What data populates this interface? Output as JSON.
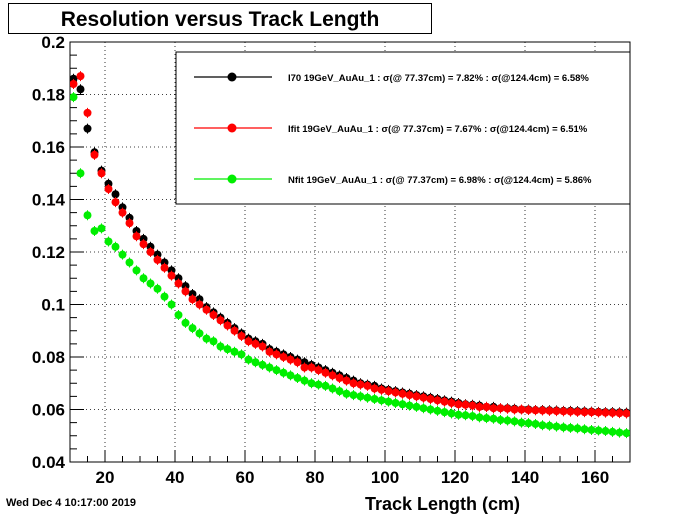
{
  "title": "Resolution versus Track Length",
  "timestamp": "Wed Dec  4 10:17:00 2019",
  "chart_data": {
    "type": "scatter",
    "title": "Resolution versus Track Length",
    "xlabel": "Track Length (cm)",
    "ylabel": "",
    "xlim": [
      10,
      170
    ],
    "ylim": [
      0.04,
      0.2
    ],
    "xticks": [
      20,
      40,
      60,
      80,
      100,
      120,
      140,
      160
    ],
    "yticks": [
      0.04,
      0.06,
      0.08,
      0.1,
      0.12,
      0.14,
      0.16,
      0.18,
      0.2
    ],
    "xtick_labels": [
      "20",
      "40",
      "60",
      "80",
      "100",
      "120",
      "140",
      "160"
    ],
    "ytick_labels": [
      "0.04",
      "0.06",
      "0.08",
      "0.1",
      "0.12",
      "0.14",
      "0.16",
      "0.18",
      "0.2"
    ],
    "grid": true,
    "legend_position": "top-right",
    "series": [
      {
        "name": "I70 19GeV_AuAu_1 : σ(@ 77.37cm) =  7.82% : σ(@124.4cm) =  6.58%",
        "color": "#000000",
        "marker": "circle",
        "x": [
          11,
          13,
          15,
          17,
          19,
          21,
          23,
          25,
          27,
          29,
          31,
          33,
          35,
          37,
          39,
          41,
          43,
          45,
          47,
          49,
          51,
          53,
          55,
          57,
          59,
          61,
          63,
          65,
          67,
          69,
          71,
          73,
          75,
          77,
          79,
          81,
          83,
          85,
          87,
          89,
          91,
          93,
          95,
          97,
          99,
          101,
          103,
          105,
          107,
          109,
          111,
          113,
          115,
          117,
          119,
          121,
          123,
          125,
          127,
          129,
          131,
          133,
          135,
          137,
          139,
          141,
          143,
          145,
          147,
          149,
          151,
          153,
          155,
          157,
          159,
          161,
          163,
          165,
          167,
          169
        ],
        "y": [
          0.186,
          0.182,
          0.167,
          0.158,
          0.151,
          0.146,
          0.142,
          0.137,
          0.133,
          0.128,
          0.125,
          0.122,
          0.119,
          0.116,
          0.113,
          0.11,
          0.107,
          0.104,
          0.102,
          0.099,
          0.097,
          0.095,
          0.093,
          0.091,
          0.089,
          0.087,
          0.086,
          0.085,
          0.083,
          0.082,
          0.081,
          0.08,
          0.079,
          0.078,
          0.077,
          0.076,
          0.075,
          0.074,
          0.073,
          0.072,
          0.071,
          0.07,
          0.0695,
          0.069,
          0.068,
          0.0675,
          0.067,
          0.0665,
          0.066,
          0.0655,
          0.065,
          0.0645,
          0.064,
          0.0635,
          0.063,
          0.0625,
          0.062,
          0.0618,
          0.0615,
          0.061,
          0.061,
          0.0605,
          0.0605,
          0.0603,
          0.06,
          0.06,
          0.0598,
          0.0598,
          0.0597,
          0.0596,
          0.0595,
          0.0595,
          0.0594,
          0.0593,
          0.0592,
          0.0591,
          0.059,
          0.059,
          0.0589,
          0.0588
        ]
      },
      {
        "name": "Ifit 19GeV_AuAu_1 : σ(@ 77.37cm) =  7.67% : σ(@124.4cm) =  6.51%",
        "color": "#ff0000",
        "marker": "circle",
        "x": [
          11,
          13,
          15,
          17,
          19,
          21,
          23,
          25,
          27,
          29,
          31,
          33,
          35,
          37,
          39,
          41,
          43,
          45,
          47,
          49,
          51,
          53,
          55,
          57,
          59,
          61,
          63,
          65,
          67,
          69,
          71,
          73,
          75,
          77,
          79,
          81,
          83,
          85,
          87,
          89,
          91,
          93,
          95,
          97,
          99,
          101,
          103,
          105,
          107,
          109,
          111,
          113,
          115,
          117,
          119,
          121,
          123,
          125,
          127,
          129,
          131,
          133,
          135,
          137,
          139,
          141,
          143,
          145,
          147,
          149,
          151,
          153,
          155,
          157,
          159,
          161,
          163,
          165,
          167,
          169
        ],
        "y": [
          0.184,
          0.187,
          0.173,
          0.157,
          0.15,
          0.144,
          0.139,
          0.135,
          0.131,
          0.126,
          0.123,
          0.12,
          0.117,
          0.114,
          0.111,
          0.108,
          0.105,
          0.102,
          0.1,
          0.098,
          0.096,
          0.094,
          0.092,
          0.09,
          0.088,
          0.086,
          0.085,
          0.084,
          0.082,
          0.081,
          0.08,
          0.079,
          0.078,
          0.076,
          0.076,
          0.075,
          0.074,
          0.073,
          0.072,
          0.071,
          0.07,
          0.0695,
          0.069,
          0.068,
          0.0675,
          0.067,
          0.0665,
          0.066,
          0.0655,
          0.065,
          0.0645,
          0.064,
          0.0635,
          0.063,
          0.0625,
          0.062,
          0.0618,
          0.0615,
          0.061,
          0.061,
          0.0605,
          0.0605,
          0.0603,
          0.06,
          0.06,
          0.0598,
          0.0597,
          0.0596,
          0.0595,
          0.0594,
          0.0593,
          0.0592,
          0.0591,
          0.059,
          0.059,
          0.0589,
          0.0588,
          0.0587,
          0.0586,
          0.0585
        ]
      },
      {
        "name": "Nfit 19GeV_AuAu_1 : σ(@ 77.37cm) =  6.98% : σ(@124.4cm) =  5.86%",
        "color": "#00ee00",
        "marker": "circle",
        "x": [
          11,
          13,
          15,
          17,
          19,
          21,
          23,
          25,
          27,
          29,
          31,
          33,
          35,
          37,
          39,
          41,
          43,
          45,
          47,
          49,
          51,
          53,
          55,
          57,
          59,
          61,
          63,
          65,
          67,
          69,
          71,
          73,
          75,
          77,
          79,
          81,
          83,
          85,
          87,
          89,
          91,
          93,
          95,
          97,
          99,
          101,
          103,
          105,
          107,
          109,
          111,
          113,
          115,
          117,
          119,
          121,
          123,
          125,
          127,
          129,
          131,
          133,
          135,
          137,
          139,
          141,
          143,
          145,
          147,
          149,
          151,
          153,
          155,
          157,
          159,
          161,
          163,
          165,
          167,
          169
        ],
        "y": [
          0.179,
          0.15,
          0.134,
          0.128,
          0.129,
          0.124,
          0.122,
          0.119,
          0.116,
          0.113,
          0.11,
          0.108,
          0.106,
          0.103,
          0.1,
          0.096,
          0.093,
          0.091,
          0.089,
          0.087,
          0.086,
          0.084,
          0.083,
          0.082,
          0.081,
          0.079,
          0.078,
          0.077,
          0.076,
          0.075,
          0.074,
          0.073,
          0.072,
          0.071,
          0.07,
          0.0695,
          0.069,
          0.068,
          0.067,
          0.066,
          0.0655,
          0.065,
          0.0645,
          0.064,
          0.0635,
          0.063,
          0.0625,
          0.062,
          0.0615,
          0.061,
          0.0605,
          0.06,
          0.0595,
          0.059,
          0.0585,
          0.058,
          0.0578,
          0.0575,
          0.057,
          0.0567,
          0.0565,
          0.056,
          0.0558,
          0.0555,
          0.055,
          0.0548,
          0.0545,
          0.054,
          0.0538,
          0.0535,
          0.0532,
          0.053,
          0.0528,
          0.0525,
          0.0522,
          0.052,
          0.0518,
          0.0515,
          0.0512,
          0.051
        ]
      }
    ]
  }
}
